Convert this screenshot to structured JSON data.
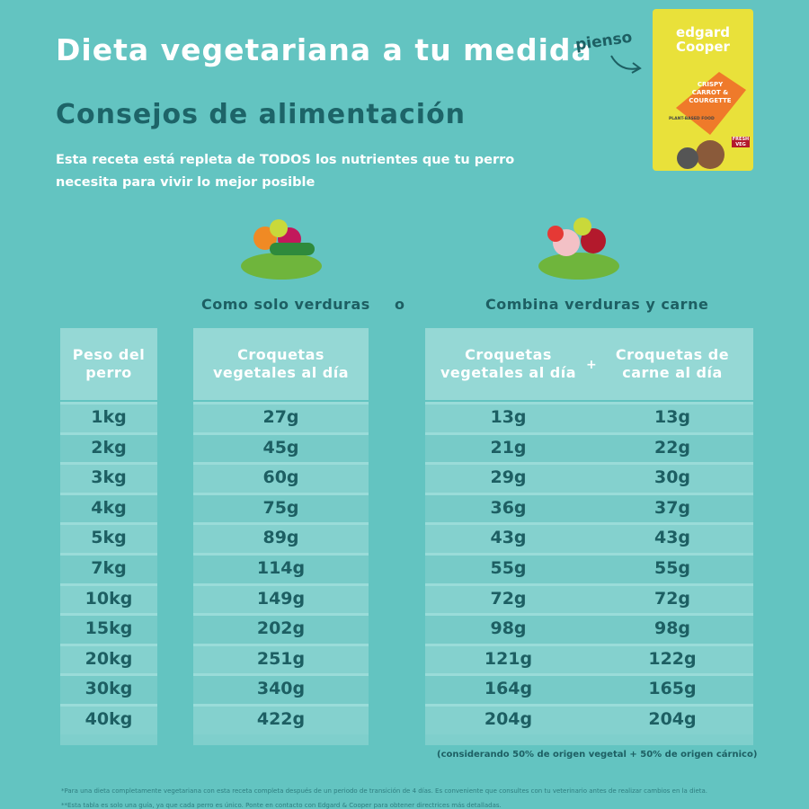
{
  "header": {
    "title": "Dieta vegetariana a tu medida",
    "subtitle": "Consejos de alimentación",
    "intro": "Esta receta está repleta de TODOS los nutrientes que tu perro necesita para vivir lo mejor posible",
    "pienso": "pienso"
  },
  "package": {
    "brand_1": "edgard",
    "brand_2": "Cooper",
    "line_1": "CRISPY",
    "line_2": "CARROT &",
    "line_3": "COURGETTE",
    "line_4": "PLANT-BASED FOOD",
    "badge": "FRESH VEG"
  },
  "options": {
    "veg_only": "Como solo verduras",
    "or": "o",
    "combined": "Combina verduras y carne",
    "plus": "+"
  },
  "table": {
    "headers": [
      "Peso del perro",
      "Croquetas vegetales al día",
      "Croquetas vegetales al día",
      "Croquetas de carne al día"
    ],
    "rows": [
      [
        "1kg",
        "27g",
        "13g",
        "13g"
      ],
      [
        "2kg",
        "45g",
        "21g",
        "22g"
      ],
      [
        "3kg",
        "60g",
        "29g",
        "30g"
      ],
      [
        "4kg",
        "75g",
        "36g",
        "37g"
      ],
      [
        "5kg",
        "89g",
        "43g",
        "43g"
      ],
      [
        "7kg",
        "114g",
        "55g",
        "55g"
      ],
      [
        "10kg",
        "149g",
        "72g",
        "72g"
      ],
      [
        "15kg",
        "202g",
        "98g",
        "98g"
      ],
      [
        "20kg",
        "251g",
        "121g",
        "122g"
      ],
      [
        "30kg",
        "340g",
        "164g",
        "165g"
      ],
      [
        "40kg",
        "422g",
        "204g",
        "204g"
      ]
    ],
    "note": "(considerando 50% de origen vegetal + 50% de origen cárnico)"
  },
  "footnotes": [
    "*Para una dieta completamente vegetariana con esta receta completa después de un periodo de transición de 4 días. Es conveniente que consultes con tu veterinario antes de realizar cambios en la dieta.",
    "**Esta tabla es solo una guía, ya que cada perro es único. Ponte en contacto con Edgard & Cooper para obtener directrices más detalladas."
  ]
}
